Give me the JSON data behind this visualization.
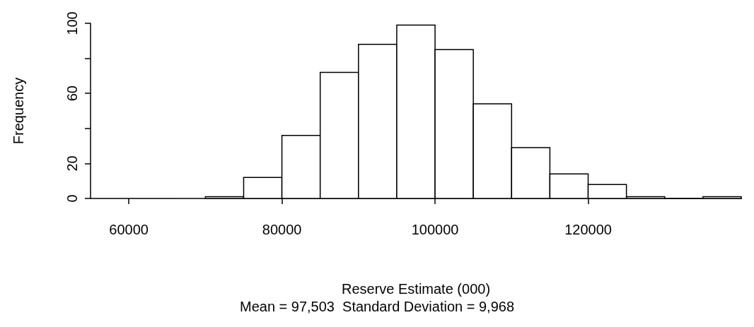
{
  "chart_data": {
    "type": "histogram",
    "xlabel": "Reserve Estimate (000)",
    "ylabel": "Frequency",
    "annotations": [
      "Mean = 97,503  Standard Deviation = 9,968"
    ],
    "bins": [
      70000,
      75000,
      80000,
      85000,
      90000,
      95000,
      100000,
      105000,
      110000,
      115000,
      120000,
      125000,
      130000,
      135000,
      140000
    ],
    "values": [
      1,
      12,
      36,
      72,
      88,
      99,
      85,
      54,
      29,
      14,
      8,
      1,
      0,
      1
    ],
    "color": "#ffffff",
    "xlim": [
      55000,
      140000
    ],
    "xticks": [
      60000,
      80000,
      100000,
      120000
    ],
    "ylim": [
      0,
      100
    ],
    "yticks": [
      0,
      20,
      {
        "value": 40,
        "label": null
      },
      60,
      {
        "value": 80,
        "label": null
      },
      100
    ],
    "grid": false
  }
}
